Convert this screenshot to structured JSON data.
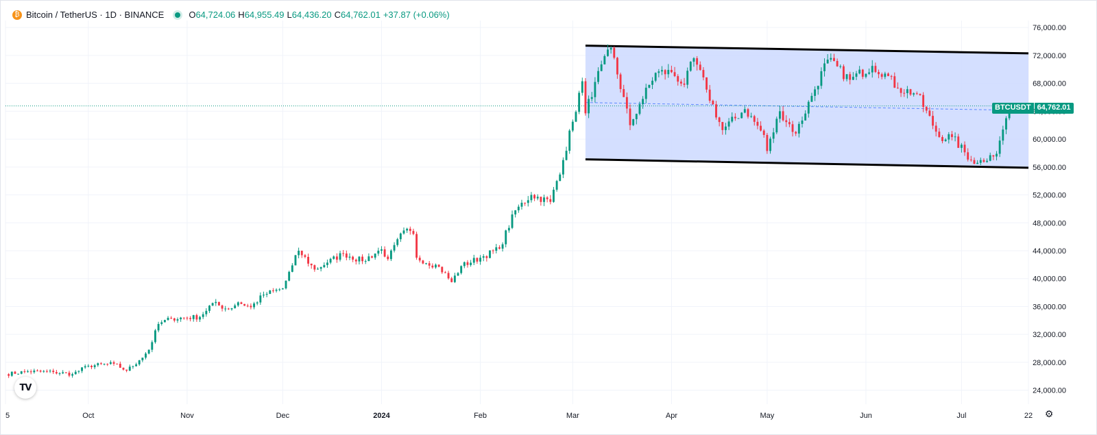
{
  "legend": {
    "symbol": "Bitcoin / TetherUS · 1D · BINANCE",
    "o_label": "O",
    "o": "64,724.06",
    "h_label": "H",
    "h": "64,955.49",
    "l_label": "L",
    "l": "64,436.20",
    "c_label": "C",
    "c": "64,762.01",
    "change": "+37.87 (+0.06%)"
  },
  "logo": "TV",
  "icons": {
    "logo": "tradingview-logo-icon",
    "settings": "gear-icon",
    "coin": "bitcoin-icon"
  },
  "price_tag": {
    "symbol": "BTCUSDT",
    "price": "64,762.01"
  },
  "colors": {
    "up": "#089981",
    "down": "#f23645",
    "channel_fill": "#ccd9ff",
    "channel_line": "#000000"
  },
  "chart_data": {
    "type": "candlestick",
    "ylim": [
      22000,
      77000
    ],
    "y_ticks": [
      "24,000.00",
      "28,000.00",
      "32,000.00",
      "36,000.00",
      "40,000.00",
      "44,000.00",
      "48,000.00",
      "52,000.00",
      "56,000.00",
      "60,000.00",
      "64,000.00",
      "68,000.00",
      "72,000.00",
      "76,000.00"
    ],
    "x_ticks": [
      "5",
      "Oct",
      "Nov",
      "Dec",
      "2024",
      "Feb",
      "Mar",
      "Apr",
      "May",
      "Jun",
      "Jul",
      "22"
    ],
    "x_range": [
      "2023-09-05",
      "2024-07-22"
    ],
    "last_price": 64762.01,
    "grid": true,
    "channel": {
      "start": "2024-03-05",
      "end": "2024-07-22",
      "upper": [
        73400,
        72300
      ],
      "lower": [
        57100,
        55900
      ]
    },
    "anchors": [
      [
        "2023-09-05",
        26300
      ],
      [
        "2023-09-12",
        26700
      ],
      [
        "2023-09-20",
        26600
      ],
      [
        "2023-09-26",
        26300
      ],
      [
        "2023-10-01",
        27500
      ],
      [
        "2023-10-09",
        27800
      ],
      [
        "2023-10-13",
        26800
      ],
      [
        "2023-10-17",
        28300
      ],
      [
        "2023-10-20",
        29800
      ],
      [
        "2023-10-23",
        33500
      ],
      [
        "2023-10-27",
        34300
      ],
      [
        "2023-11-05",
        34500
      ],
      [
        "2023-11-09",
        36500
      ],
      [
        "2023-11-14",
        35600
      ],
      [
        "2023-11-17",
        36600
      ],
      [
        "2023-11-21",
        35900
      ],
      [
        "2023-11-25",
        37700
      ],
      [
        "2023-12-01",
        38600
      ],
      [
        "2023-12-04",
        41900
      ],
      [
        "2023-12-06",
        44000
      ],
      [
        "2023-12-11",
        41300
      ],
      [
        "2023-12-15",
        42300
      ],
      [
        "2023-12-20",
        43600
      ],
      [
        "2023-12-26",
        42500
      ],
      [
        "2024-01-01",
        44200
      ],
      [
        "2024-01-03",
        42800
      ],
      [
        "2024-01-08",
        46900
      ],
      [
        "2024-01-11",
        46400
      ],
      [
        "2024-01-12",
        43000
      ],
      [
        "2024-01-19",
        41700
      ],
      [
        "2024-01-23",
        39500
      ],
      [
        "2024-01-26",
        41800
      ],
      [
        "2024-02-01",
        43000
      ],
      [
        "2024-02-07",
        44300
      ],
      [
        "2024-02-12",
        49800
      ],
      [
        "2024-02-17",
        52000
      ],
      [
        "2024-02-23",
        51000
      ],
      [
        "2024-02-27",
        57000
      ],
      [
        "2024-03-01",
        62500
      ],
      [
        "2024-03-04",
        68300
      ],
      [
        "2024-03-05",
        63700
      ],
      [
        "2024-03-08",
        68200
      ],
      [
        "2024-03-13",
        73100
      ],
      [
        "2024-03-19",
        62000
      ],
      [
        "2024-03-22",
        65000
      ],
      [
        "2024-03-27",
        69500
      ],
      [
        "2024-04-01",
        69600
      ],
      [
        "2024-04-05",
        67800
      ],
      [
        "2024-04-08",
        71600
      ],
      [
        "2024-04-12",
        67100
      ],
      [
        "2024-04-17",
        61300
      ],
      [
        "2024-04-24",
        64300
      ],
      [
        "2024-04-30",
        60600
      ],
      [
        "2024-05-01",
        58300
      ],
      [
        "2024-05-05",
        64000
      ],
      [
        "2024-05-10",
        60800
      ],
      [
        "2024-05-15",
        66200
      ],
      [
        "2024-05-20",
        71400
      ],
      [
        "2024-05-27",
        68500
      ],
      [
        "2024-06-03",
        70500
      ],
      [
        "2024-06-07",
        69400
      ],
      [
        "2024-06-11",
        67300
      ],
      [
        "2024-06-17",
        66500
      ],
      [
        "2024-06-24",
        60300
      ],
      [
        "2024-06-28",
        60300
      ],
      [
        "2024-07-04",
        57000
      ],
      [
        "2024-07-06",
        56600
      ],
      [
        "2024-07-10",
        57700
      ],
      [
        "2024-07-12",
        57900
      ],
      [
        "2024-07-15",
        63000
      ],
      [
        "2024-07-16",
        64762
      ]
    ]
  }
}
